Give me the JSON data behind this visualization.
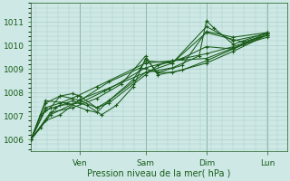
{
  "xlabel": "Pression niveau de la mer( hPa )",
  "ylim": [
    1005.5,
    1011.8
  ],
  "yticks": [
    1006,
    1007,
    1008,
    1009,
    1010,
    1011
  ],
  "background_color": "#cde8e5",
  "plot_bg_color": "#cde8e5",
  "grid_color": "#a8ccca",
  "line_color": "#1a5c1a",
  "day_labels": [
    "Ven",
    "Sam",
    "Dim",
    "Lun"
  ],
  "day_positions": [
    0.2,
    0.47,
    0.72,
    0.97
  ],
  "xlim": [
    0.0,
    1.05
  ],
  "series": [
    [
      [
        0.0,
        1006.0
      ],
      [
        0.06,
        1006.8
      ],
      [
        0.12,
        1007.05
      ],
      [
        0.2,
        1007.7
      ],
      [
        0.3,
        1008.1
      ],
      [
        0.47,
        1008.85
      ],
      [
        0.58,
        1009.25
      ],
      [
        0.72,
        1010.8
      ],
      [
        0.83,
        1010.2
      ],
      [
        0.97,
        1010.5
      ]
    ],
    [
      [
        0.0,
        1006.0
      ],
      [
        0.06,
        1007.25
      ],
      [
        0.12,
        1007.45
      ],
      [
        0.2,
        1007.55
      ],
      [
        0.32,
        1008.15
      ],
      [
        0.47,
        1009.05
      ],
      [
        0.58,
        1009.35
      ],
      [
        0.72,
        1009.65
      ],
      [
        0.83,
        1009.95
      ],
      [
        0.97,
        1010.45
      ]
    ],
    [
      [
        0.0,
        1006.0
      ],
      [
        0.06,
        1007.35
      ],
      [
        0.12,
        1007.55
      ],
      [
        0.19,
        1007.85
      ],
      [
        0.27,
        1008.25
      ],
      [
        0.47,
        1009.25
      ],
      [
        0.58,
        1009.35
      ],
      [
        0.72,
        1009.45
      ],
      [
        0.87,
        1010.05
      ],
      [
        0.97,
        1010.35
      ]
    ],
    [
      [
        0.0,
        1006.0
      ],
      [
        0.08,
        1007.05
      ],
      [
        0.2,
        1007.65
      ],
      [
        0.32,
        1008.45
      ],
      [
        0.45,
        1009.05
      ],
      [
        0.52,
        1008.85
      ],
      [
        0.62,
        1009.15
      ],
      [
        0.72,
        1010.6
      ],
      [
        0.83,
        1010.35
      ],
      [
        0.97,
        1010.55
      ]
    ],
    [
      [
        0.0,
        1006.0
      ],
      [
        0.08,
        1007.15
      ],
      [
        0.17,
        1007.35
      ],
      [
        0.27,
        1007.75
      ],
      [
        0.37,
        1008.35
      ],
      [
        0.47,
        1009.55
      ],
      [
        0.52,
        1008.75
      ],
      [
        0.62,
        1008.95
      ],
      [
        0.72,
        1009.35
      ],
      [
        0.83,
        1009.85
      ],
      [
        0.97,
        1010.45
      ]
    ],
    [
      [
        0.0,
        1006.0
      ],
      [
        0.06,
        1007.65
      ],
      [
        0.15,
        1007.55
      ],
      [
        0.23,
        1007.25
      ],
      [
        0.27,
        1007.15
      ],
      [
        0.32,
        1007.65
      ],
      [
        0.42,
        1008.55
      ],
      [
        0.47,
        1009.35
      ],
      [
        0.58,
        1009.25
      ],
      [
        0.72,
        1010.55
      ],
      [
        0.87,
        1010.15
      ],
      [
        0.97,
        1010.45
      ]
    ],
    [
      [
        0.0,
        1006.0
      ],
      [
        0.04,
        1006.5
      ],
      [
        0.1,
        1007.35
      ],
      [
        0.17,
        1007.65
      ],
      [
        0.23,
        1007.45
      ],
      [
        0.29,
        1007.05
      ],
      [
        0.35,
        1007.45
      ],
      [
        0.42,
        1008.25
      ],
      [
        0.47,
        1009.45
      ],
      [
        0.52,
        1008.85
      ],
      [
        0.58,
        1008.85
      ],
      [
        0.72,
        1009.25
      ],
      [
        0.83,
        1009.75
      ],
      [
        0.97,
        1010.45
      ]
    ],
    [
      [
        0.0,
        1006.0
      ],
      [
        0.06,
        1007.55
      ],
      [
        0.12,
        1007.85
      ],
      [
        0.17,
        1007.95
      ],
      [
        0.2,
        1007.85
      ],
      [
        0.27,
        1007.35
      ],
      [
        0.32,
        1007.65
      ],
      [
        0.47,
        1008.85
      ],
      [
        0.58,
        1009.05
      ],
      [
        0.69,
        1009.55
      ],
      [
        0.72,
        1011.05
      ],
      [
        0.75,
        1010.75
      ],
      [
        0.83,
        1010.05
      ],
      [
        0.97,
        1010.55
      ]
    ],
    [
      [
        0.0,
        1006.0
      ],
      [
        0.04,
        1007.05
      ],
      [
        0.08,
        1007.35
      ],
      [
        0.12,
        1007.85
      ],
      [
        0.17,
        1007.75
      ],
      [
        0.2,
        1007.65
      ],
      [
        0.27,
        1007.35
      ],
      [
        0.32,
        1007.55
      ],
      [
        0.42,
        1008.35
      ],
      [
        0.47,
        1008.75
      ],
      [
        0.52,
        1009.15
      ],
      [
        0.62,
        1009.45
      ],
      [
        0.72,
        1009.95
      ],
      [
        0.83,
        1009.85
      ],
      [
        0.97,
        1010.55
      ]
    ]
  ]
}
